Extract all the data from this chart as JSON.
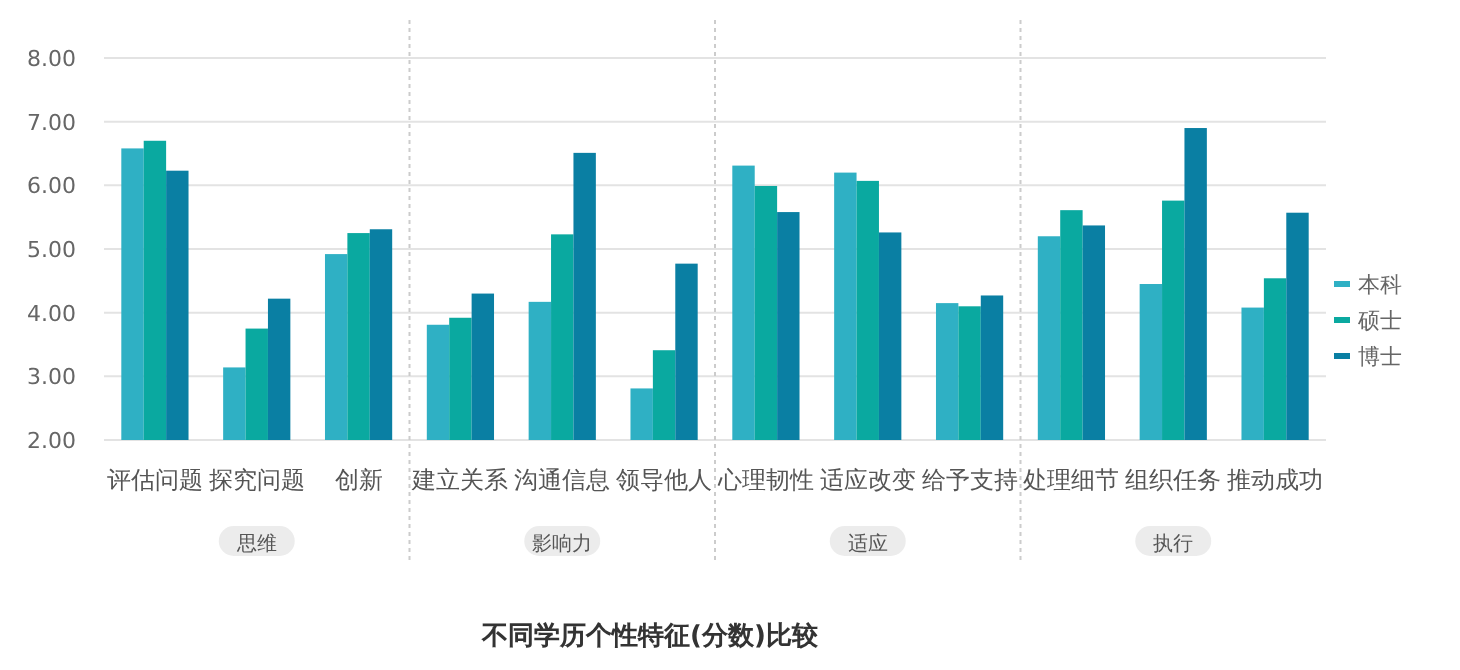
{
  "chart_data": {
    "type": "bar",
    "title": "不同学历个性特征(分数)比较",
    "categories": [
      "评估问题",
      "探究问题",
      "创新",
      "建立关系",
      "沟通信息",
      "领导他人",
      "心理韧性",
      "适应改变",
      "给予支持",
      "处理细节",
      "组织任务",
      "推动成功"
    ],
    "series": [
      {
        "name": "本科",
        "color": "#2fb0c4",
        "values": [
          6.58,
          3.14,
          4.92,
          3.81,
          4.17,
          2.81,
          6.31,
          6.2,
          4.15,
          5.2,
          4.45,
          4.08
        ]
      },
      {
        "name": "硕士",
        "color": "#0aa9a0",
        "values": [
          6.7,
          3.75,
          5.25,
          3.92,
          5.23,
          3.41,
          5.99,
          6.07,
          4.1,
          5.61,
          5.76,
          4.54
        ]
      },
      {
        "name": "博士",
        "color": "#0a7fa3",
        "values": [
          6.23,
          4.22,
          5.31,
          4.3,
          6.51,
          4.77,
          5.58,
          5.26,
          4.27,
          5.37,
          6.9,
          5.57
        ]
      }
    ],
    "ylim": [
      2,
      8
    ],
    "yticks": [
      {
        "value": 2,
        "label": "2.00"
      },
      {
        "value": 3,
        "label": "3.00"
      },
      {
        "value": 4,
        "label": "4.00"
      },
      {
        "value": 5,
        "label": "5.00"
      },
      {
        "value": 6,
        "label": "6.00"
      },
      {
        "value": 7,
        "label": "7.00"
      },
      {
        "value": 8,
        "label": "8.00"
      }
    ],
    "grid": "y",
    "legend": "right",
    "annotations": [
      "思维",
      "影响力",
      "适应",
      "执行"
    ]
  }
}
